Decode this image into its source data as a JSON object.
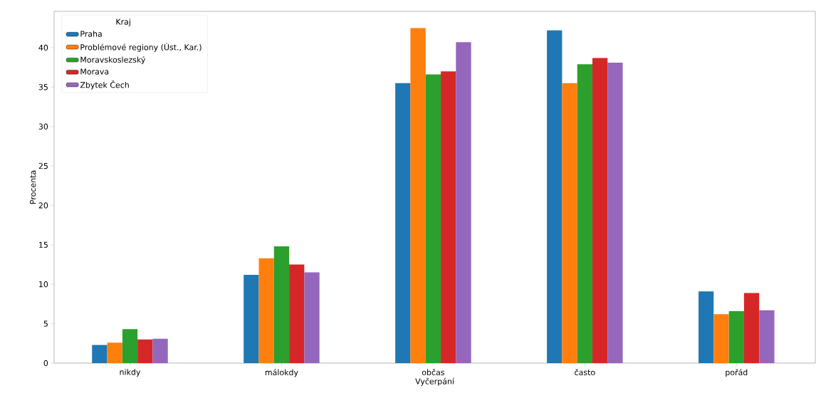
{
  "chart_data": {
    "type": "bar",
    "xlabel": "Vyčerpání",
    "ylabel": "Procenta",
    "legend_title": "Kraj",
    "legend": "top left",
    "grid": false,
    "categories": [
      "nikdy",
      "málokdy",
      "občas",
      "často",
      "pořád"
    ],
    "ylim": [
      0,
      44.6
    ],
    "yticks": [
      0,
      5,
      10,
      15,
      20,
      25,
      30,
      35,
      40
    ],
    "series": [
      {
        "name": "Praha",
        "color": "#1f77b4",
        "values": [
          2.3,
          11.2,
          35.5,
          42.2,
          9.1
        ]
      },
      {
        "name": "Problémové regiony (Úst., Kar.)",
        "color": "#ff7f0e",
        "values": [
          2.6,
          13.3,
          42.5,
          35.5,
          6.2
        ]
      },
      {
        "name": "Moravskoslezský",
        "color": "#2ca02c",
        "values": [
          4.3,
          14.8,
          36.6,
          37.9,
          6.6
        ]
      },
      {
        "name": "Morava",
        "color": "#d62728",
        "values": [
          3.0,
          12.5,
          37.0,
          38.7,
          8.9
        ]
      },
      {
        "name": "Zbytek Čech",
        "color": "#9467bd",
        "values": [
          3.1,
          11.5,
          40.7,
          38.1,
          6.7
        ]
      }
    ]
  }
}
